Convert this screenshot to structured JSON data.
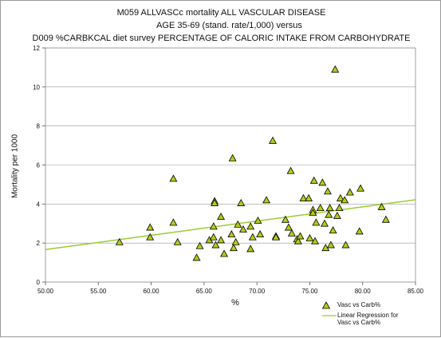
{
  "chart_data": {
    "type": "scatter",
    "title": "M059 ALLVASCc    mortality ALL VASCULAR DISEASE",
    "subtitle": "AGE 35-69 (stand. rate/1,000)  versus",
    "subtitle2": "D009 %CARBKCAL diet survey PERCENTAGE OF CALORIC INTAKE FROM CARBOHYDRATE",
    "xlabel": "%",
    "ylabel": "Mortality per 1000",
    "xlim": [
      50,
      85
    ],
    "ylim": [
      0,
      12
    ],
    "x_ticks": [
      "50.00",
      "55.00",
      "60.00",
      "65.00",
      "70.00",
      "75.00",
      "80.00",
      "85.00"
    ],
    "y_ticks": [
      "0",
      "2",
      "4",
      "6",
      "8",
      "10",
      "12"
    ],
    "grid": "horizontal",
    "legend_position": "bottom-right",
    "series": [
      {
        "name": "Vasc vs Carb%",
        "marker": "triangle",
        "color": "#b5cc18",
        "points": [
          [
            57.0,
            2.05
          ],
          [
            59.9,
            2.3
          ],
          [
            59.9,
            2.8
          ],
          [
            62.1,
            5.3
          ],
          [
            62.1,
            3.05
          ],
          [
            62.5,
            2.05
          ],
          [
            64.3,
            1.25
          ],
          [
            64.6,
            1.85
          ],
          [
            65.5,
            2.15
          ],
          [
            65.9,
            2.3
          ],
          [
            65.9,
            2.85
          ],
          [
            66.0,
            4.15
          ],
          [
            66.0,
            4.05
          ],
          [
            66.1,
            1.9
          ],
          [
            66.6,
            3.35
          ],
          [
            66.6,
            2.15
          ],
          [
            66.9,
            1.45
          ],
          [
            67.6,
            2.45
          ],
          [
            67.7,
            6.35
          ],
          [
            67.8,
            1.75
          ],
          [
            68.0,
            2.05
          ],
          [
            68.2,
            2.95
          ],
          [
            68.5,
            4.05
          ],
          [
            68.7,
            2.7
          ],
          [
            69.4,
            1.7
          ],
          [
            69.4,
            2.85
          ],
          [
            69.6,
            2.3
          ],
          [
            70.1,
            3.15
          ],
          [
            70.3,
            2.45
          ],
          [
            70.9,
            4.2
          ],
          [
            71.5,
            7.25
          ],
          [
            71.8,
            2.35
          ],
          [
            71.8,
            2.3
          ],
          [
            72.7,
            3.2
          ],
          [
            73.0,
            2.8
          ],
          [
            73.2,
            5.7
          ],
          [
            73.3,
            2.5
          ],
          [
            73.8,
            2.2
          ],
          [
            73.9,
            2.1
          ],
          [
            74.1,
            2.35
          ],
          [
            74.4,
            4.3
          ],
          [
            74.9,
            4.3
          ],
          [
            75.0,
            2.25
          ],
          [
            75.3,
            3.7
          ],
          [
            75.3,
            3.55
          ],
          [
            75.4,
            5.2
          ],
          [
            75.5,
            2.1
          ],
          [
            75.6,
            3.05
          ],
          [
            76.0,
            3.8
          ],
          [
            76.2,
            5.1
          ],
          [
            76.4,
            3.0
          ],
          [
            76.5,
            1.75
          ],
          [
            76.7,
            4.65
          ],
          [
            76.8,
            3.45
          ],
          [
            76.9,
            3.8
          ],
          [
            77.0,
            1.9
          ],
          [
            77.2,
            2.65
          ],
          [
            77.4,
            10.9
          ],
          [
            77.6,
            3.4
          ],
          [
            77.8,
            3.8
          ],
          [
            77.9,
            4.3
          ],
          [
            78.3,
            4.2
          ],
          [
            78.4,
            1.9
          ],
          [
            78.8,
            4.6
          ],
          [
            79.7,
            2.6
          ],
          [
            79.8,
            4.8
          ],
          [
            81.8,
            3.85
          ],
          [
            82.2,
            3.2
          ]
        ]
      },
      {
        "name": "Linear Regression for\nVasc vs Carb%",
        "type": "line",
        "color": "#9acd32",
        "points": [
          [
            50,
            1.67
          ],
          [
            85,
            4.22
          ]
        ]
      }
    ]
  }
}
